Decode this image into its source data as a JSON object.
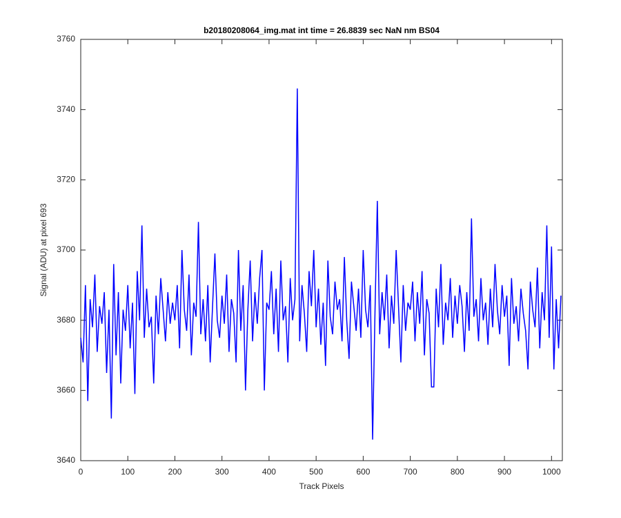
{
  "chart_data": {
    "type": "line",
    "title": "b20180208064_img.mat int time = 26.8839 sec  NaN nm BS04",
    "xlabel": "Track Pixels",
    "ylabel": "Signal (ADU) at pixel 693",
    "xlim": [
      0,
      1023
    ],
    "ylim": [
      3640,
      3760
    ],
    "xticks": [
      0,
      100,
      200,
      300,
      400,
      500,
      600,
      700,
      800,
      900,
      1000
    ],
    "yticks": [
      3640,
      3660,
      3680,
      3700,
      3720,
      3740,
      3760
    ],
    "x": [
      0,
      5,
      10,
      15,
      20,
      25,
      30,
      35,
      40,
      45,
      50,
      55,
      60,
      65,
      70,
      75,
      80,
      85,
      90,
      95,
      100,
      105,
      110,
      115,
      120,
      125,
      130,
      135,
      140,
      145,
      150,
      155,
      160,
      165,
      170,
      175,
      180,
      185,
      190,
      195,
      200,
      205,
      210,
      215,
      220,
      225,
      230,
      235,
      240,
      245,
      250,
      255,
      260,
      265,
      270,
      275,
      280,
      285,
      290,
      295,
      300,
      305,
      310,
      315,
      320,
      325,
      330,
      335,
      340,
      345,
      350,
      355,
      360,
      365,
      370,
      375,
      380,
      385,
      390,
      395,
      400,
      405,
      410,
      415,
      420,
      425,
      430,
      435,
      440,
      445,
      450,
      455,
      460,
      465,
      470,
      475,
      480,
      485,
      490,
      495,
      500,
      505,
      510,
      515,
      520,
      525,
      530,
      535,
      540,
      545,
      550,
      555,
      560,
      565,
      570,
      575,
      580,
      585,
      590,
      595,
      600,
      605,
      610,
      615,
      620,
      625,
      630,
      635,
      640,
      645,
      650,
      655,
      660,
      665,
      670,
      675,
      680,
      685,
      690,
      695,
      700,
      705,
      710,
      715,
      720,
      725,
      730,
      735,
      740,
      745,
      750,
      755,
      760,
      765,
      770,
      775,
      780,
      785,
      790,
      795,
      800,
      805,
      810,
      815,
      820,
      825,
      830,
      835,
      840,
      845,
      850,
      855,
      860,
      865,
      870,
      875,
      880,
      885,
      890,
      895,
      900,
      905,
      910,
      915,
      920,
      925,
      930,
      935,
      940,
      945,
      950,
      955,
      960,
      965,
      970,
      975,
      980,
      985,
      990,
      995,
      1000,
      1005,
      1010,
      1015,
      1020
    ],
    "series": [
      {
        "color": "#0000ff",
        "values": [
          3675,
          3668,
          3690,
          3657,
          3686,
          3678,
          3693,
          3671,
          3684,
          3679,
          3688,
          3665,
          3683,
          3652,
          3696,
          3670,
          3688,
          3662,
          3683,
          3677,
          3690,
          3672,
          3685,
          3659,
          3694,
          3680,
          3707,
          3675,
          3689,
          3678,
          3681,
          3662,
          3687,
          3676,
          3692,
          3683,
          3674,
          3688,
          3679,
          3685,
          3680,
          3690,
          3672,
          3700,
          3683,
          3677,
          3693,
          3670,
          3685,
          3681,
          3708,
          3676,
          3686,
          3674,
          3690,
          3668,
          3684,
          3699,
          3680,
          3675,
          3687,
          3679,
          3693,
          3671,
          3686,
          3682,
          3668,
          3700,
          3677,
          3690,
          3660,
          3683,
          3697,
          3674,
          3688,
          3679,
          3692,
          3700,
          3660,
          3685,
          3683,
          3694,
          3676,
          3689,
          3671,
          3697,
          3680,
          3684,
          3668,
          3692,
          3680,
          3686,
          3746,
          3674,
          3690,
          3682,
          3671,
          3694,
          3684,
          3700,
          3678,
          3689,
          3673,
          3685,
          3667,
          3697,
          3681,
          3676,
          3691,
          3683,
          3686,
          3674,
          3698,
          3680,
          3669,
          3691,
          3684,
          3677,
          3689,
          3675,
          3700,
          3683,
          3678,
          3690,
          3646,
          3682,
          3714,
          3676,
          3688,
          3680,
          3693,
          3672,
          3687,
          3679,
          3700,
          3684,
          3668,
          3690,
          3677,
          3685,
          3683,
          3691,
          3674,
          3688,
          3679,
          3694,
          3670,
          3686,
          3682,
          3661,
          3661,
          3689,
          3678,
          3696,
          3673,
          3685,
          3680,
          3692,
          3675,
          3687,
          3679,
          3690,
          3684,
          3671,
          3688,
          3677,
          3709,
          3681,
          3686,
          3674,
          3692,
          3680,
          3685,
          3673,
          3689,
          3678,
          3696,
          3683,
          3676,
          3690,
          3681,
          3687,
          3667,
          3692,
          3679,
          3684,
          3674,
          3689,
          3682,
          3677,
          3666,
          3691,
          3683,
          3678,
          3695,
          3672,
          3688,
          3680,
          3707,
          3675,
          3701,
          3666,
          3686,
          3672,
          3687
        ]
      }
    ]
  }
}
